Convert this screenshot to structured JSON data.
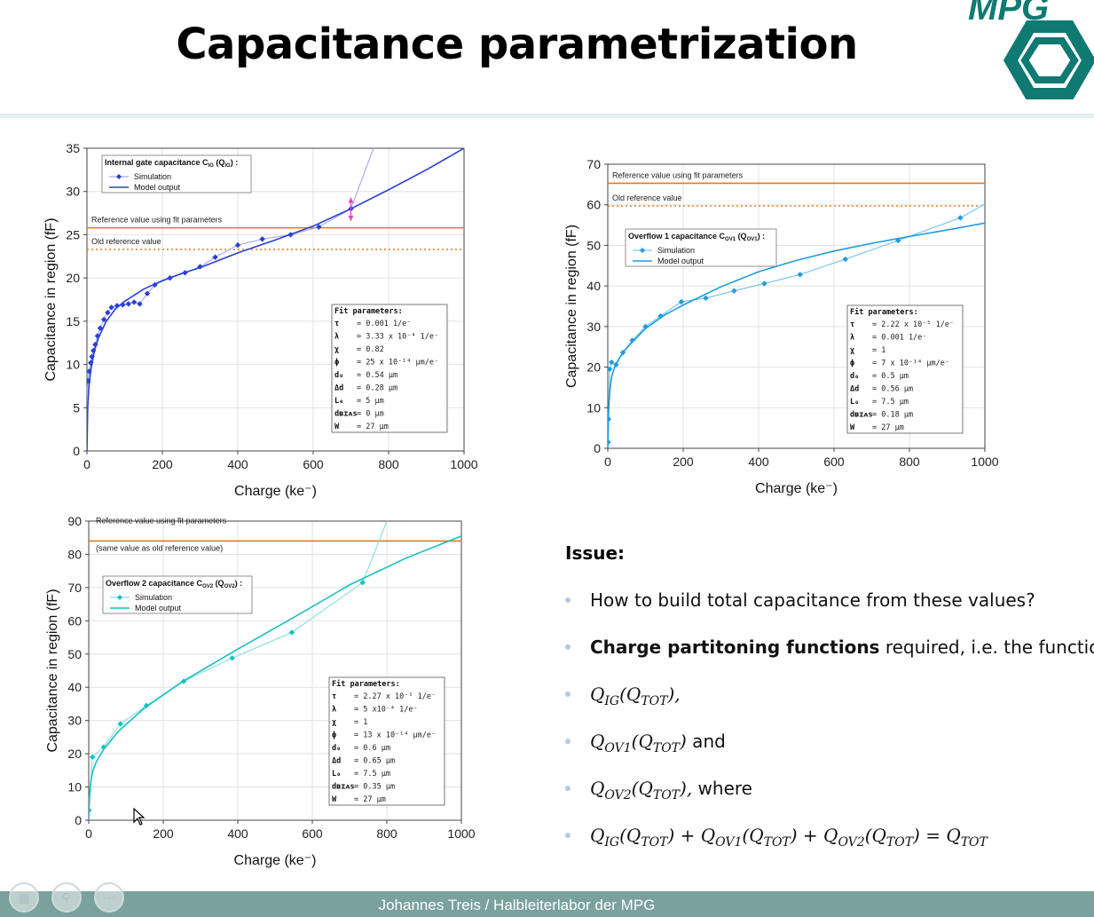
{
  "slide": {
    "title": "Capacitance parametrization",
    "footer": "Johannes Treis / Halbleiterlabor der MPG",
    "logo_text": "MPG",
    "colors": {
      "accent_teal": "#0f7a72",
      "footer_bg": "#7aa19c",
      "reference_orange": "#e07b1f",
      "bullet_dot": "#b8c9d6"
    }
  },
  "issue": {
    "heading": "Issue:",
    "bullets": [
      {
        "parts": [
          {
            "text": "How to build total capacitance from these values?",
            "style": "normal"
          }
        ]
      },
      {
        "parts": [
          {
            "text": "Charge partitoning functions",
            "style": "bold"
          },
          {
            "text": " required, i.e. the functions",
            "style": "normal"
          }
        ]
      },
      {
        "parts": [
          {
            "text": "Q",
            "style": "math"
          },
          {
            "text": "IG",
            "style": "math-sub"
          },
          {
            "text": "(Q",
            "style": "math"
          },
          {
            "text": "TOT",
            "style": "math-sub"
          },
          {
            "text": "),",
            "style": "math"
          }
        ]
      },
      {
        "parts": [
          {
            "text": "Q",
            "style": "math"
          },
          {
            "text": "OV1",
            "style": "math-sub"
          },
          {
            "text": "(Q",
            "style": "math"
          },
          {
            "text": "TOT",
            "style": "math-sub"
          },
          {
            "text": ")",
            "style": "math"
          },
          {
            "text": " and",
            "style": "normal"
          }
        ]
      },
      {
        "parts": [
          {
            "text": "Q",
            "style": "math"
          },
          {
            "text": "OV2",
            "style": "math-sub"
          },
          {
            "text": "(Q",
            "style": "math"
          },
          {
            "text": "TOT",
            "style": "math-sub"
          },
          {
            "text": "),",
            "style": "math"
          },
          {
            "text": " where",
            "style": "normal"
          }
        ]
      },
      {
        "parts": [
          {
            "text": "Q",
            "style": "math"
          },
          {
            "text": "IG",
            "style": "math-sub"
          },
          {
            "text": "(Q",
            "style": "math"
          },
          {
            "text": "TOT",
            "style": "math-sub"
          },
          {
            "text": ") + Q",
            "style": "math"
          },
          {
            "text": "OV1",
            "style": "math-sub"
          },
          {
            "text": "(Q",
            "style": "math"
          },
          {
            "text": "TOT",
            "style": "math-sub"
          },
          {
            "text": ") + Q",
            "style": "math"
          },
          {
            "text": "OV2",
            "style": "math-sub"
          },
          {
            "text": "(Q",
            "style": "math"
          },
          {
            "text": "TOT",
            "style": "math-sub"
          },
          {
            "text": ") = Q",
            "style": "math"
          },
          {
            "text": "TOT",
            "style": "math-sub"
          }
        ]
      }
    ]
  },
  "chart_data": [
    {
      "id": "ig",
      "type": "line",
      "title": "",
      "xlabel": "Charge (ke⁻)",
      "ylabel": "Capacitance in region (fF)",
      "xlim": [
        0,
        1000
      ],
      "ylim": [
        0,
        35
      ],
      "xticks": [
        0,
        200,
        400,
        600,
        800,
        1000
      ],
      "yticks": [
        0,
        5,
        10,
        15,
        20,
        25,
        30,
        35
      ],
      "color": "#2a3fd6",
      "sim_color": "#a6aef0",
      "grid": true,
      "legend": {
        "title": "Internal gate capacitance C",
        "title_sub": "IG",
        "title_tail": " (Q",
        "title_sub2": "IG",
        "title_end": ") :",
        "sim": "Simulation",
        "model": "Model output",
        "placement": "top-left"
      },
      "reference_lines": [
        {
          "label": "Reference value using fit parameters",
          "y": 25.8,
          "style": "solid"
        },
        {
          "label": "Old reference value",
          "y": 23.3,
          "style": "dotted"
        }
      ],
      "simulation": {
        "x": [
          0,
          1,
          2,
          3,
          4,
          6,
          8,
          10,
          13,
          17,
          22,
          28,
          35,
          45,
          55,
          65,
          80,
          95,
          110,
          125,
          140,
          160,
          180,
          220,
          260,
          300,
          340,
          400,
          465,
          540,
          615,
          700,
          760
        ],
        "y": [
          0,
          7.0,
          7.6,
          8.1,
          8.6,
          9.2,
          9.7,
          10.2,
          10.9,
          11.6,
          12.3,
          13.3,
          14.2,
          15.2,
          16.0,
          16.6,
          16.8,
          16.9,
          17.0,
          17.2,
          17.0,
          18.2,
          19.2,
          20.0,
          20.6,
          21.3,
          22.4,
          23.8,
          24.5,
          25.0,
          25.9,
          28.0,
          35.0
        ]
      },
      "markers_x": [
        3,
        6,
        10,
        13,
        17,
        22,
        28,
        35,
        45,
        55,
        65,
        80,
        95,
        110,
        125,
        140,
        160,
        180,
        220,
        260,
        300,
        340,
        400,
        465,
        540,
        615,
        700
      ],
      "model": {
        "x": [
          0,
          2,
          5,
          10,
          20,
          30,
          50,
          75,
          100,
          150,
          200,
          250,
          300,
          400,
          500,
          600,
          700,
          800,
          900,
          1000
        ],
        "y": [
          0,
          5.0,
          7.3,
          9.3,
          11.6,
          13.0,
          14.9,
          16.4,
          17.3,
          18.7,
          19.7,
          20.5,
          21.2,
          22.9,
          24.4,
          26.0,
          28.0,
          30.2,
          32.5,
          35.0
        ]
      },
      "error_bar": {
        "x": 700,
        "y_low": 26.6,
        "y_high": 29.3
      },
      "fit_parameters": {
        "title": "Fit parameters:",
        "rows": [
          [
            "τ",
            "= 0.001 1/e⁻"
          ],
          [
            "λ",
            "= 3.33 x 10⁻⁴ 1/e⁻"
          ],
          [
            "χ",
            "= 0.82"
          ],
          [
            "ϕ",
            "= 25 x 10⁻¹⁴ μm/e⁻"
          ],
          [
            "d₀",
            "= 0.54 μm"
          ],
          [
            "Δd",
            "= 0.28 μm"
          ],
          [
            "L₀",
            "= 5 μm"
          ],
          [
            "dʙɪᴀѕ",
            "= 0 μm"
          ],
          [
            "W",
            "= 27 μm"
          ]
        ]
      }
    },
    {
      "id": "ov1",
      "type": "line",
      "title": "",
      "xlabel": "Charge (ke⁻)",
      "ylabel": "Capacitance in region (fF)",
      "xlim": [
        0,
        1000
      ],
      "ylim": [
        0,
        70
      ],
      "xticks": [
        0,
        200,
        400,
        600,
        800,
        1000
      ],
      "yticks": [
        0,
        10,
        20,
        30,
        40,
        50,
        60,
        70
      ],
      "color": "#1e9be0",
      "sim_color": "#7cc6ef",
      "grid": true,
      "legend": {
        "title": "Overflow 1 capacitance C",
        "title_sub": "OV1",
        "title_tail": " (Q",
        "title_sub2": "OV1",
        "title_end": ") :",
        "sim": "Simulation",
        "model": "Model output",
        "placement": "top-left"
      },
      "reference_lines": [
        {
          "label": "Reference value using fit parameters",
          "y": 65.3,
          "style": "solid"
        },
        {
          "label": "Old reference value",
          "y": 59.7,
          "style": "dotted"
        }
      ],
      "simulation": {
        "x": [
          0,
          1,
          2,
          5,
          10,
          22,
          40,
          65,
          100,
          140,
          195,
          260,
          335,
          415,
          510,
          630,
          770,
          935,
          1000
        ],
        "y": [
          0,
          1.5,
          7.2,
          19.5,
          21.2,
          20.6,
          23.6,
          26.6,
          30.0,
          32.6,
          36.1,
          37.0,
          38.8,
          40.6,
          42.8,
          46.6,
          51.2,
          56.8,
          60.2
        ]
      },
      "markers_x": [
        1,
        2,
        5,
        10,
        22,
        40,
        65,
        100,
        140,
        195,
        260,
        335,
        415,
        510,
        630,
        770,
        935
      ],
      "model": {
        "x": [
          0,
          2,
          5,
          10,
          20,
          40,
          60,
          100,
          150,
          200,
          300,
          400,
          500,
          600,
          700,
          800,
          900,
          1000
        ],
        "y": [
          0,
          9.0,
          13.8,
          17.6,
          20.5,
          23.6,
          25.7,
          29.5,
          32.8,
          35.3,
          39.8,
          43.5,
          46.3,
          48.6,
          50.5,
          52.2,
          53.8,
          55.5
        ]
      },
      "fit_parameters": {
        "title": "Fit parameters:",
        "rows": [
          [
            "τ",
            "= 2.22 x 10⁻⁵ 1/e⁻"
          ],
          [
            "λ",
            "= 0.001 1/e⁻"
          ],
          [
            "χ",
            "= 1"
          ],
          [
            "ϕ",
            "= 7 x 10⁻¹⁴ μm/e⁻"
          ],
          [
            "d₀",
            "= 0.5 μm"
          ],
          [
            "Δd",
            "= 0.56 μm"
          ],
          [
            "L₀",
            "= 7.5 μm"
          ],
          [
            "dʙɪᴀѕ",
            "= 0.18 μm"
          ],
          [
            "W",
            "= 27 μm"
          ]
        ]
      }
    },
    {
      "id": "ov2",
      "type": "line",
      "title": "",
      "xlabel": "Charge (ke⁻)",
      "ylabel": "Capacitance in region (fF)",
      "xlim": [
        0,
        1000
      ],
      "ylim": [
        0,
        90
      ],
      "xticks": [
        0,
        200,
        400,
        600,
        800,
        1000
      ],
      "yticks": [
        0,
        10,
        20,
        30,
        40,
        50,
        60,
        70,
        80,
        90
      ],
      "color": "#16c1c0",
      "sim_color": "#8ee0df",
      "grid": true,
      "legend": {
        "title": "Overflow 2 capacitance C",
        "title_sub": "OV2",
        "title_tail": " (Q",
        "title_sub2": "OV2",
        "title_end": ") :",
        "sim": "Simulation",
        "model": "Model output",
        "placement": "top-left"
      },
      "reference_lines": [
        {
          "label": "Reference value using fit parameters",
          "label2": "(same value as old reference value)",
          "y": 84,
          "style": "solid"
        }
      ],
      "simulation": {
        "x": [
          0,
          1,
          10,
          40,
          85,
          155,
          255,
          385,
          545,
          735,
          800
        ],
        "y": [
          0,
          3.0,
          19.0,
          22.0,
          29.0,
          34.5,
          41.8,
          48.8,
          56.5,
          71.5,
          90.0
        ]
      },
      "markers_x": [
        1,
        10,
        40,
        85,
        155,
        255,
        385,
        545,
        735
      ],
      "model": {
        "x": [
          0,
          2,
          5,
          10,
          20,
          40,
          80,
          150,
          250,
          400,
          550,
          700,
          850,
          1000
        ],
        "y": [
          0,
          7.0,
          11.0,
          14.5,
          17.5,
          21.3,
          26.8,
          33.8,
          41.6,
          51.5,
          61.0,
          70.8,
          78.8,
          85.5
        ]
      },
      "fit_parameters": {
        "title": "Fit parameters:",
        "rows": [
          [
            "τ",
            "= 2.27 x 10⁻⁵ 1/e⁻"
          ],
          [
            "λ",
            "= 5 x10⁻⁴ 1/e⁻"
          ],
          [
            "χ",
            "= 1"
          ],
          [
            "ϕ",
            "= 13 x 10⁻¹⁴ μm/e⁻"
          ],
          [
            "d₀",
            "= 0.6 μm"
          ],
          [
            "Δd",
            "= 0.65 μm"
          ],
          [
            "L₀",
            "= 7.5 μm"
          ],
          [
            "dʙɪᴀѕ",
            "= 0.35 μm"
          ],
          [
            "W",
            "= 27 μm"
          ]
        ]
      }
    }
  ]
}
